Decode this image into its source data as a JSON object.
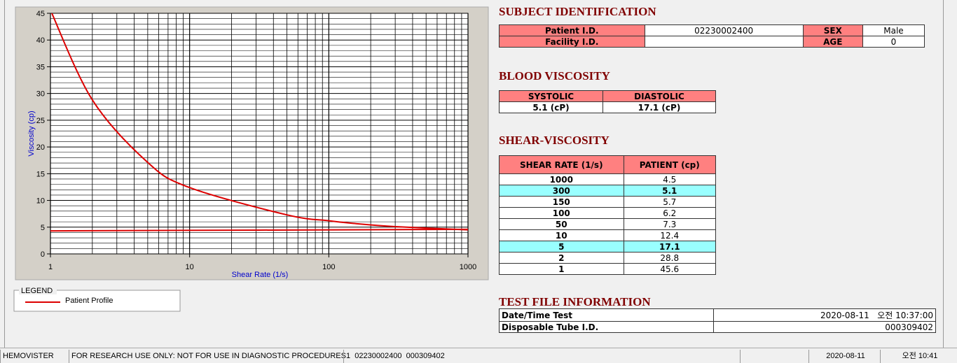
{
  "chart_data": {
    "type": "line",
    "x_label": "Shear Rate (1/s)",
    "y_label": "Viscosity (cp)",
    "legend_title": "LEGEND",
    "xscale": "log",
    "xlim": [
      1,
      1000
    ],
    "xticks": [
      1,
      10,
      100,
      1000
    ],
    "xminor": [
      2,
      3,
      4,
      5,
      6,
      7,
      8,
      9,
      20,
      30,
      40,
      50,
      60,
      70,
      80,
      90,
      200,
      300,
      400,
      500,
      600,
      700,
      800,
      900
    ],
    "ylim": [
      0,
      45
    ],
    "yticks": [
      0,
      5,
      10,
      15,
      20,
      25,
      30,
      35,
      40,
      45
    ],
    "yminor": [
      1,
      2,
      3,
      4,
      6,
      7,
      8,
      9,
      11,
      12,
      13,
      14,
      16,
      17,
      18,
      19,
      21,
      22,
      23,
      24,
      26,
      27,
      28,
      29,
      31,
      32,
      33,
      34,
      36,
      37,
      38,
      39,
      41,
      42,
      43,
      44
    ],
    "grid": true,
    "series": [
      {
        "name": "Patient Profile",
        "color": "#dd0000",
        "x": [
          1,
          2,
          5,
          10,
          50,
          100,
          150,
          300,
          1000
        ],
        "values": [
          45.6,
          28.8,
          17.1,
          12.4,
          7.3,
          6.2,
          5.7,
          5.1,
          4.5
        ]
      },
      {
        "color": "#dd0000",
        "x": [
          1,
          1000
        ],
        "values": [
          4.3,
          4.6
        ]
      }
    ]
  },
  "subject": {
    "title": "SUBJECT IDENTIFICATION",
    "rows": [
      [
        "Patient I.D.",
        "02230002400",
        "SEX",
        "Male"
      ],
      [
        "Facility I.D.",
        null,
        "AGE",
        0
      ]
    ]
  },
  "blood_viscosity": {
    "title": "BLOOD VISCOSITY",
    "headers": [
      "SYSTOLIC",
      "DIASTOLIC"
    ],
    "values": [
      "5.1 (cP)",
      "17.1 (cP)"
    ]
  },
  "shear_viscosity": {
    "title": "SHEAR-VISCOSITY",
    "headers": [
      "SHEAR RATE (1/s)",
      "PATIENT (cp)"
    ],
    "rows": [
      [
        1000,
        4.5
      ],
      [
        300,
        5.1
      ],
      [
        150,
        5.7
      ],
      [
        100,
        6.2
      ],
      [
        50,
        7.3
      ],
      [
        10,
        12.4
      ],
      [
        5,
        17.1
      ],
      [
        2,
        28.8
      ],
      [
        1,
        45.6
      ]
    ],
    "highlight": [
      1,
      6
    ]
  },
  "test_file": {
    "title": "TEST FILE INFORMATION",
    "rows": [
      [
        "Date/Time Test",
        "2020-08-11   오전 10:37:00"
      ],
      [
        "Disposable Tube I.D.",
        "000309402"
      ]
    ]
  },
  "status_bar": [
    "HEMOVISTER",
    "FOR RESEARCH USE ONLY: NOT FOR USE IN DIAGNOSTIC PROCEDURES",
    "1  02230002400  000309402",
    null,
    "2020-08-11",
    "오전 10:41"
  ]
}
